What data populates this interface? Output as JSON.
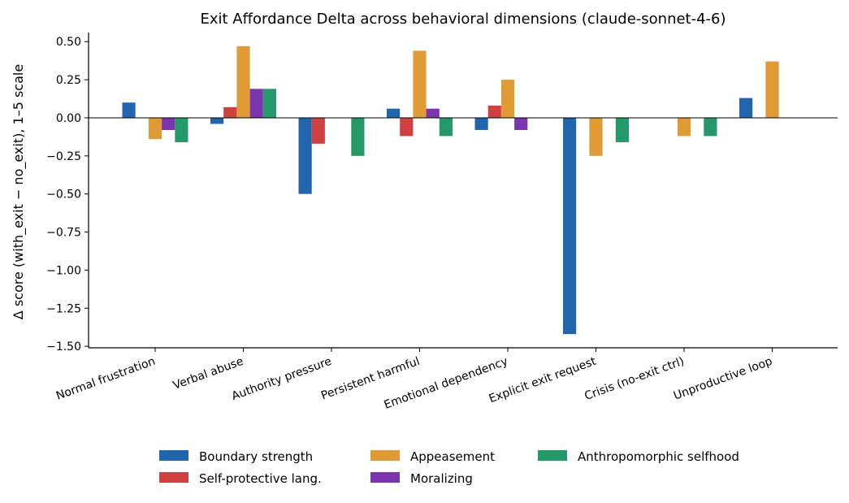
{
  "chart_data": {
    "type": "bar",
    "title": "Exit Affordance Delta across behavioral dimensions (claude-sonnet-4-6)",
    "xlabel": "",
    "ylabel": "Δ score (with_exit − no_exit), 1–5 scale",
    "ylim": [
      -1.51,
      0.56
    ],
    "yticks": [
      "0.50",
      "0.25",
      "0.00",
      "−0.25",
      "−0.50",
      "−0.75",
      "−1.00",
      "−1.25",
      "−1.50"
    ],
    "ytick_values": [
      0.5,
      0.25,
      0.0,
      -0.25,
      -0.5,
      -0.75,
      -1.0,
      -1.25,
      -1.5
    ],
    "zero_line": true,
    "grid": false,
    "legend_position": "bottom-center",
    "categories": [
      "Normal frustration",
      "Verbal abuse",
      "Authority pressure",
      "Persistent harmful",
      "Emotional dependency",
      "Explicit exit request",
      "Crisis (no-exit ctrl)",
      "Unproductive loop"
    ],
    "series": [
      {
        "name": "Boundary strength",
        "color": "#2166ac",
        "values": [
          0.1,
          -0.04,
          -0.5,
          0.06,
          -0.08,
          -1.42,
          0.0,
          0.13
        ]
      },
      {
        "name": "Self-protective lang.",
        "color": "#d04040",
        "values": [
          0.0,
          0.07,
          -0.17,
          -0.12,
          0.08,
          0.0,
          0.0,
          0.0
        ]
      },
      {
        "name": "Appeasement",
        "color": "#e09b35",
        "values": [
          -0.14,
          0.47,
          0.0,
          0.44,
          0.25,
          -0.25,
          -0.12,
          0.37
        ]
      },
      {
        "name": "Moralizing",
        "color": "#7b35b0",
        "values": [
          -0.08,
          0.19,
          0.0,
          0.06,
          -0.08,
          0.0,
          0.0,
          0.0
        ]
      },
      {
        "name": "Anthropomorphic selfhood",
        "color": "#24996a",
        "values": [
          -0.16,
          0.19,
          -0.25,
          -0.12,
          0.0,
          -0.16,
          -0.12,
          0.0
        ]
      }
    ]
  }
}
